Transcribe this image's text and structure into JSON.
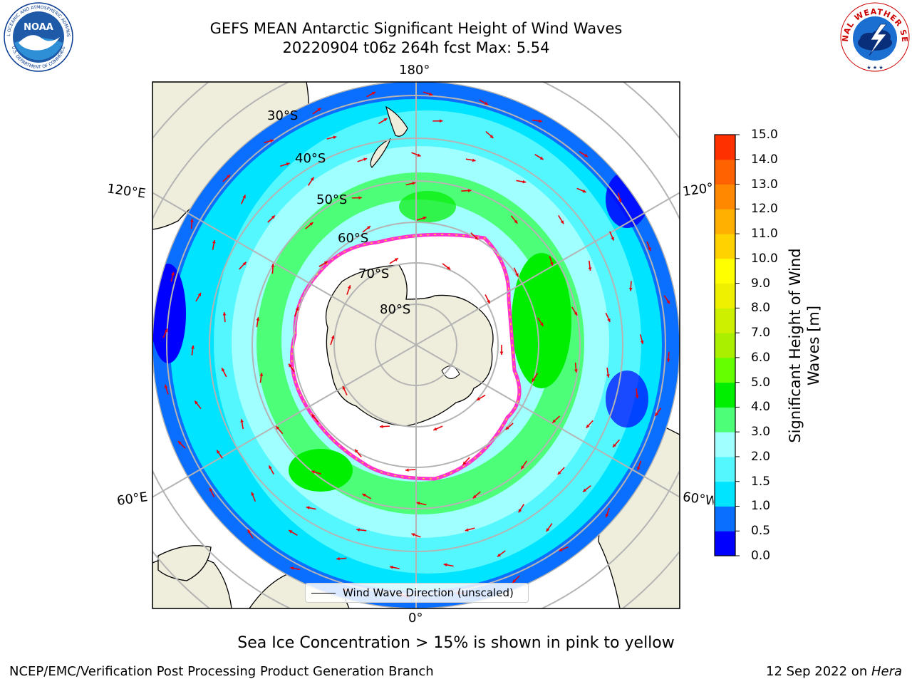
{
  "header": {
    "title_line1": "GEFS MEAN Antarctic Significant Height of Wind Waves",
    "title_line2": "20220904 t06z 264h fcst   Max: 5.54"
  },
  "map": {
    "projection": "south-polar-stereographic",
    "longitude_labels": [
      "180°",
      "120°E",
      "120°W",
      "60°E",
      "60°W",
      "0°"
    ],
    "latitude_labels": [
      "30°S",
      "40°S",
      "50°S",
      "60°S",
      "70°S",
      "80°S"
    ],
    "arrow_color": "#e8000b",
    "sea_ice_colors": [
      "#ff33cc",
      "#ffcc33"
    ],
    "land_color": "#efeddc",
    "legend_label": "Wind Wave Direction (unscaled)"
  },
  "colorbar": {
    "label": "Significant Height of Wind Waves [m]",
    "label_line1": "Significant Height of Wind",
    "label_line2": "Waves [m]",
    "tick_labels": [
      "15.0",
      "14.0",
      "13.0",
      "12.0",
      "11.0",
      "10.0",
      "9.0",
      "8.0",
      "7.0",
      "6.0",
      "5.0",
      "4.0",
      "3.0",
      "2.0",
      "1.5",
      "1.0",
      "0.5",
      "0.0"
    ],
    "levels": [
      0.0,
      0.5,
      1.0,
      1.5,
      2.0,
      3.0,
      4.0,
      5.0,
      6.0,
      7.0,
      8.0,
      9.0,
      10.0,
      11.0,
      12.0,
      13.0,
      14.0,
      15.0
    ],
    "colors": [
      "#0000ff",
      "#0a6eff",
      "#00e4ff",
      "#55f7ff",
      "#a0ffff",
      "#4dff78",
      "#00ee00",
      "#66ff00",
      "#aaee00",
      "#ccf000",
      "#eef000",
      "#ffff00",
      "#ffd200",
      "#ffb000",
      "#ff8800",
      "#ff6200",
      "#ff3000"
    ]
  },
  "caption": "Sea Ice Concentration > 15% is shown in pink to yellow",
  "footer": {
    "left": "NCEP/EMC/Verification Post Processing Product Generation Branch",
    "right_date": "12 Sep 2022 on ",
    "right_host": "Hera"
  },
  "logos": {
    "noaa_text": "NOAA",
    "noaa_ring_text": "NATIONAL OCEANIC AND ATMOSPHERIC ADMINISTRATION",
    "noaa_ring_text_bottom": "U.S. DEPARTMENT OF COMMERCE",
    "nws_ring_text": "NATIONAL WEATHER SERVICE"
  }
}
